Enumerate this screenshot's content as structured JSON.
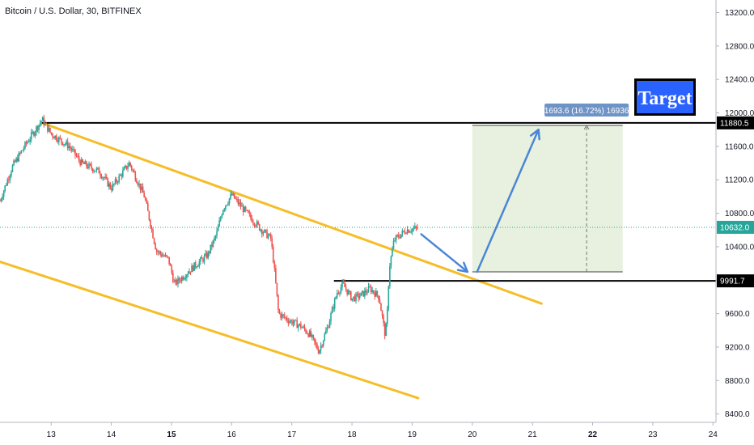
{
  "header": {
    "title": "Bitcoin / U.S. Dollar, 30, BITFINEX"
  },
  "colors": {
    "up": "#26a69a",
    "down": "#ef5350",
    "channel": "#f5bd28",
    "arrow": "#4a86d6",
    "level": "#000000",
    "target_bg": "#2962ff",
    "zone": "#e4efd9",
    "last_price": "#26a69a",
    "measure_box": "#6e93c7"
  },
  "chart_data": {
    "type": "candlestick",
    "title": "Bitcoin / U.S. Dollar, 30, BITFINEX",
    "x_ticks": [
      {
        "label": "13",
        "day": 13,
        "bold": false
      },
      {
        "label": "14",
        "day": 14,
        "bold": false
      },
      {
        "label": "15",
        "day": 15,
        "bold": true
      },
      {
        "label": "16",
        "day": 16,
        "bold": false
      },
      {
        "label": "17",
        "day": 17,
        "bold": false
      },
      {
        "label": "18",
        "day": 18,
        "bold": false
      },
      {
        "label": "19",
        "day": 19,
        "bold": false
      },
      {
        "label": "20",
        "day": 20,
        "bold": false
      },
      {
        "label": "21",
        "day": 21,
        "bold": false
      },
      {
        "label": "22",
        "day": 22,
        "bold": true
      },
      {
        "label": "23",
        "day": 23,
        "bold": false
      },
      {
        "label": "24",
        "day": 24,
        "bold": false
      }
    ],
    "y_ticks": [
      "13200.0",
      "12800.0",
      "12400.0",
      "12000.0",
      "11600.0",
      "11200.0",
      "10800.0",
      "10400.0",
      "10000.0",
      "9600.0",
      "9200.0",
      "8800.0",
      "8400.0"
    ],
    "ylim": [
      8300,
      13350
    ],
    "xlim": [
      12.15,
      24.05
    ],
    "price_path": [
      [
        12.15,
        10950
      ],
      [
        12.35,
        11350
      ],
      [
        12.6,
        11650
      ],
      [
        12.85,
        11920
      ],
      [
        13.0,
        11750
      ],
      [
        13.3,
        11600
      ],
      [
        13.5,
        11400
      ],
      [
        13.8,
        11300
      ],
      [
        14.0,
        11100
      ],
      [
        14.15,
        11250
      ],
      [
        14.3,
        11400
      ],
      [
        14.55,
        11000
      ],
      [
        14.75,
        10350
      ],
      [
        14.95,
        10250
      ],
      [
        15.05,
        9950
      ],
      [
        15.35,
        10150
      ],
      [
        15.6,
        10300
      ],
      [
        15.75,
        10550
      ],
      [
        15.85,
        10850
      ],
      [
        16.0,
        11020
      ],
      [
        16.25,
        10800
      ],
      [
        16.5,
        10600
      ],
      [
        16.65,
        10500
      ],
      [
        16.7,
        10200
      ],
      [
        16.78,
        9600
      ],
      [
        16.95,
        9520
      ],
      [
        17.15,
        9450
      ],
      [
        17.3,
        9350
      ],
      [
        17.45,
        9150
      ],
      [
        17.6,
        9450
      ],
      [
        17.75,
        9850
      ],
      [
        17.85,
        9950
      ],
      [
        18.0,
        9780
      ],
      [
        18.15,
        9820
      ],
      [
        18.3,
        9900
      ],
      [
        18.45,
        9800
      ],
      [
        18.55,
        9350
      ],
      [
        18.58,
        9500
      ],
      [
        18.62,
        10150
      ],
      [
        18.7,
        10480
      ],
      [
        18.9,
        10600
      ],
      [
        19.1,
        10620
      ]
    ],
    "last_price": "10632.0",
    "last_price_value": 10632,
    "levels": [
      {
        "value": 11880.5,
        "label": "11880.5",
        "from_day": 12.85
      },
      {
        "value": 9991.7,
        "label": "9991.7",
        "from_day": 17.7
      }
    ],
    "channel_lines": [
      {
        "from": [
          12.85,
          11880
        ],
        "to": [
          21.15,
          9720
        ]
      },
      {
        "from": [
          12.15,
          10220
        ],
        "to": [
          19.1,
          8590
        ]
      }
    ],
    "arrows": [
      {
        "from": [
          19.15,
          10550
        ],
        "to": [
          19.92,
          10100
        ]
      },
      {
        "from": [
          20.08,
          10100
        ],
        "to": [
          21.1,
          11800
        ]
      }
    ],
    "target_zone": {
      "x0": 20.0,
      "x1": 22.5,
      "y0": 10100,
      "y1": 11850,
      "mid_day": 21.9
    },
    "measure_label": "1693.6 (16.72%) 16936",
    "annotation": "Target"
  }
}
